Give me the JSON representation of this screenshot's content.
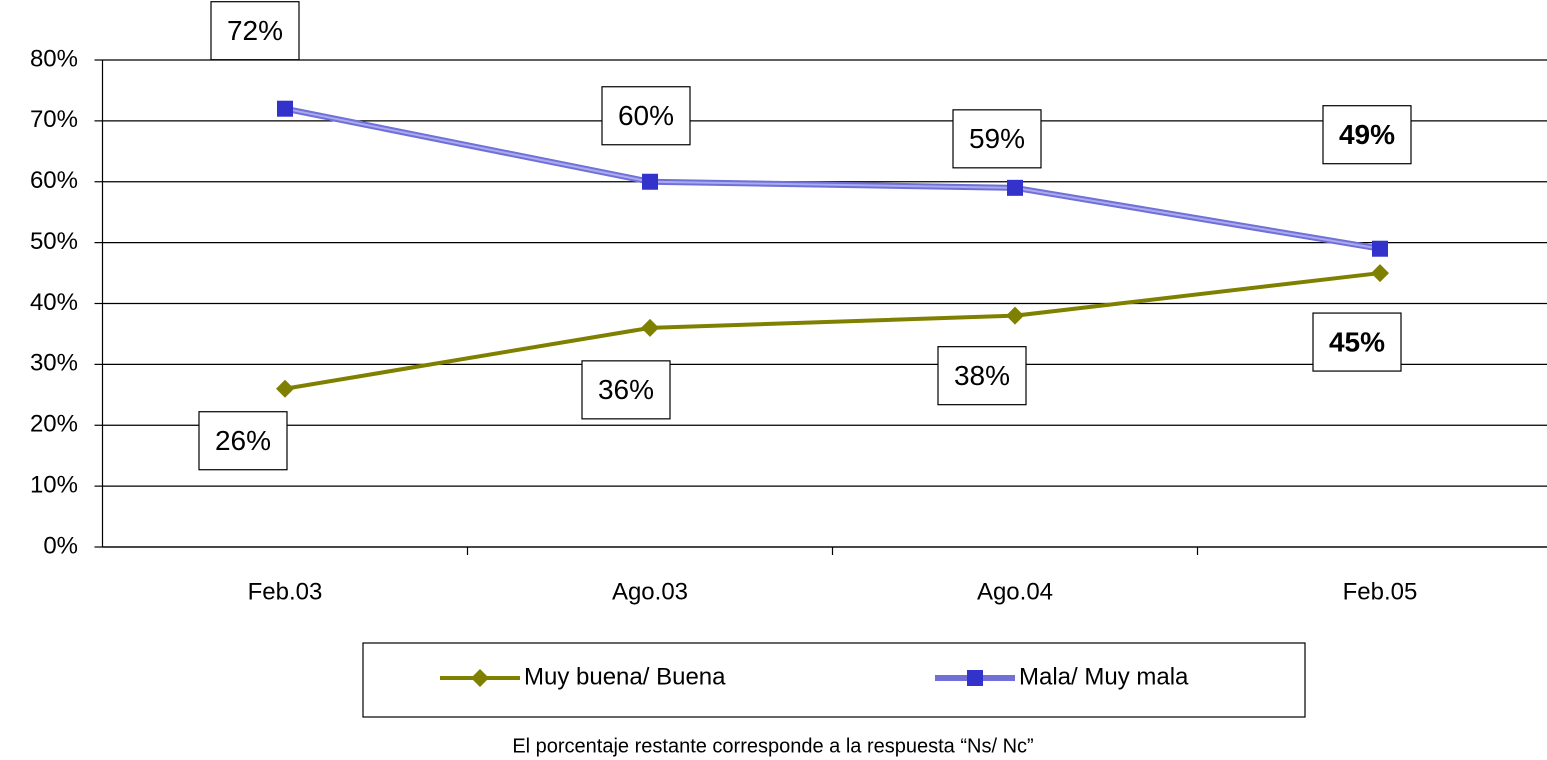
{
  "chart_data": {
    "type": "line",
    "categories": [
      "Feb.03",
      "Ago.03",
      "Ago.04",
      "Feb.05"
    ],
    "series": [
      {
        "name": "Muy buena/ Buena",
        "color": "#808000",
        "marker": "diamond",
        "values": [
          26,
          36,
          38,
          45
        ],
        "value_labels": [
          "26%",
          "36%",
          "38%",
          "45%"
        ]
      },
      {
        "name": "Mala/ Muy mala",
        "color": "#3333cc",
        "marker": "square",
        "values": [
          72,
          60,
          59,
          49
        ],
        "value_labels": [
          "72%",
          "60%",
          "59%",
          "49%"
        ]
      }
    ],
    "ylim": [
      0,
      80
    ],
    "yticks": [
      {
        "value": 0,
        "label": "0%"
      },
      {
        "value": 10,
        "label": "10%"
      },
      {
        "value": 20,
        "label": "20%"
      },
      {
        "value": 30,
        "label": "30%"
      },
      {
        "value": 40,
        "label": "40%"
      },
      {
        "value": 50,
        "label": "50%"
      },
      {
        "value": 60,
        "label": "60%"
      },
      {
        "value": 70,
        "label": "70%"
      },
      {
        "value": 80,
        "label": "80%"
      }
    ],
    "grid": true,
    "legend": "bottom",
    "note": "El porcentaje restante corresponde a la respuesta “Ns/ Nc”"
  }
}
